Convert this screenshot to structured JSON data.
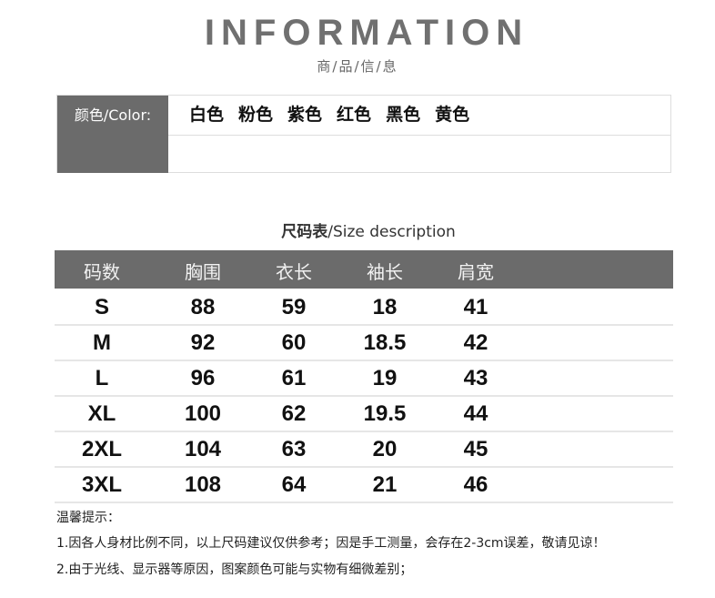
{
  "header": {
    "title": "INFORMATION",
    "subtitle": "商/品/信/息"
  },
  "color_table": {
    "label": "颜色/Color:",
    "colors": [
      "白色",
      "粉色",
      "紫色",
      "红色",
      "黑色",
      "黄色"
    ]
  },
  "size_table": {
    "heading_bold": "尺码表",
    "heading_rest": "/Size description",
    "columns": [
      "码数",
      "胸围",
      "衣长",
      "袖长",
      "肩宽"
    ],
    "rows": [
      [
        "S",
        "88",
        "59",
        "18",
        "41"
      ],
      [
        "M",
        "92",
        "60",
        "18.5",
        "42"
      ],
      [
        "L",
        "96",
        "61",
        "19",
        "43"
      ],
      [
        "XL",
        "100",
        "62",
        "19.5",
        "44"
      ],
      [
        "2XL",
        "104",
        "63",
        "20",
        "45"
      ],
      [
        "3XL",
        "108",
        "64",
        "21",
        "46"
      ]
    ]
  },
  "notes": {
    "title": "温馨提示：",
    "items": [
      "1.因各人身材比例不同，以上尺码建议仅供参考；因是手工测量，会存在2-3cm误差，敬请见谅！",
      "2.由于光线、显示器等原因，图案颜色可能与实物有细微差别；"
    ]
  },
  "colors": {
    "header_bg": "#6b6b6b",
    "title": "#707070"
  }
}
